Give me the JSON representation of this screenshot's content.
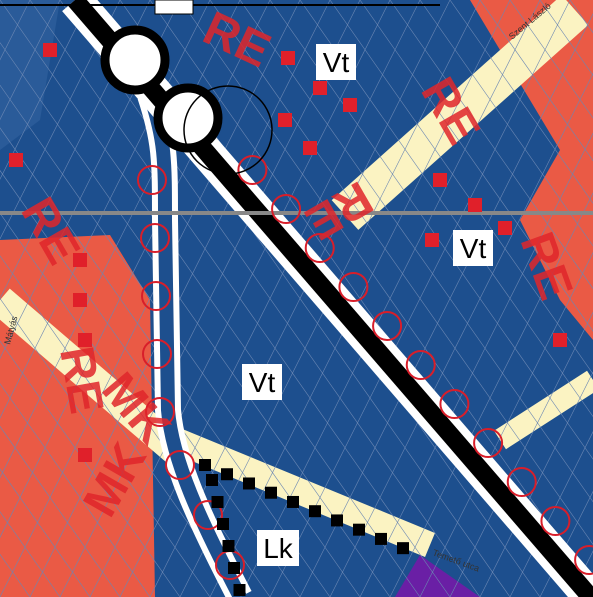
{
  "zones": [
    "Vt",
    "Vt",
    "Vt",
    "Lk"
  ],
  "codes": [
    "RE",
    "RE",
    "RE",
    "RE",
    "RE",
    "MK",
    "MK",
    "RE"
  ],
  "streets": [
    "Szent László",
    "Temető utca",
    "Mátyás"
  ]
}
